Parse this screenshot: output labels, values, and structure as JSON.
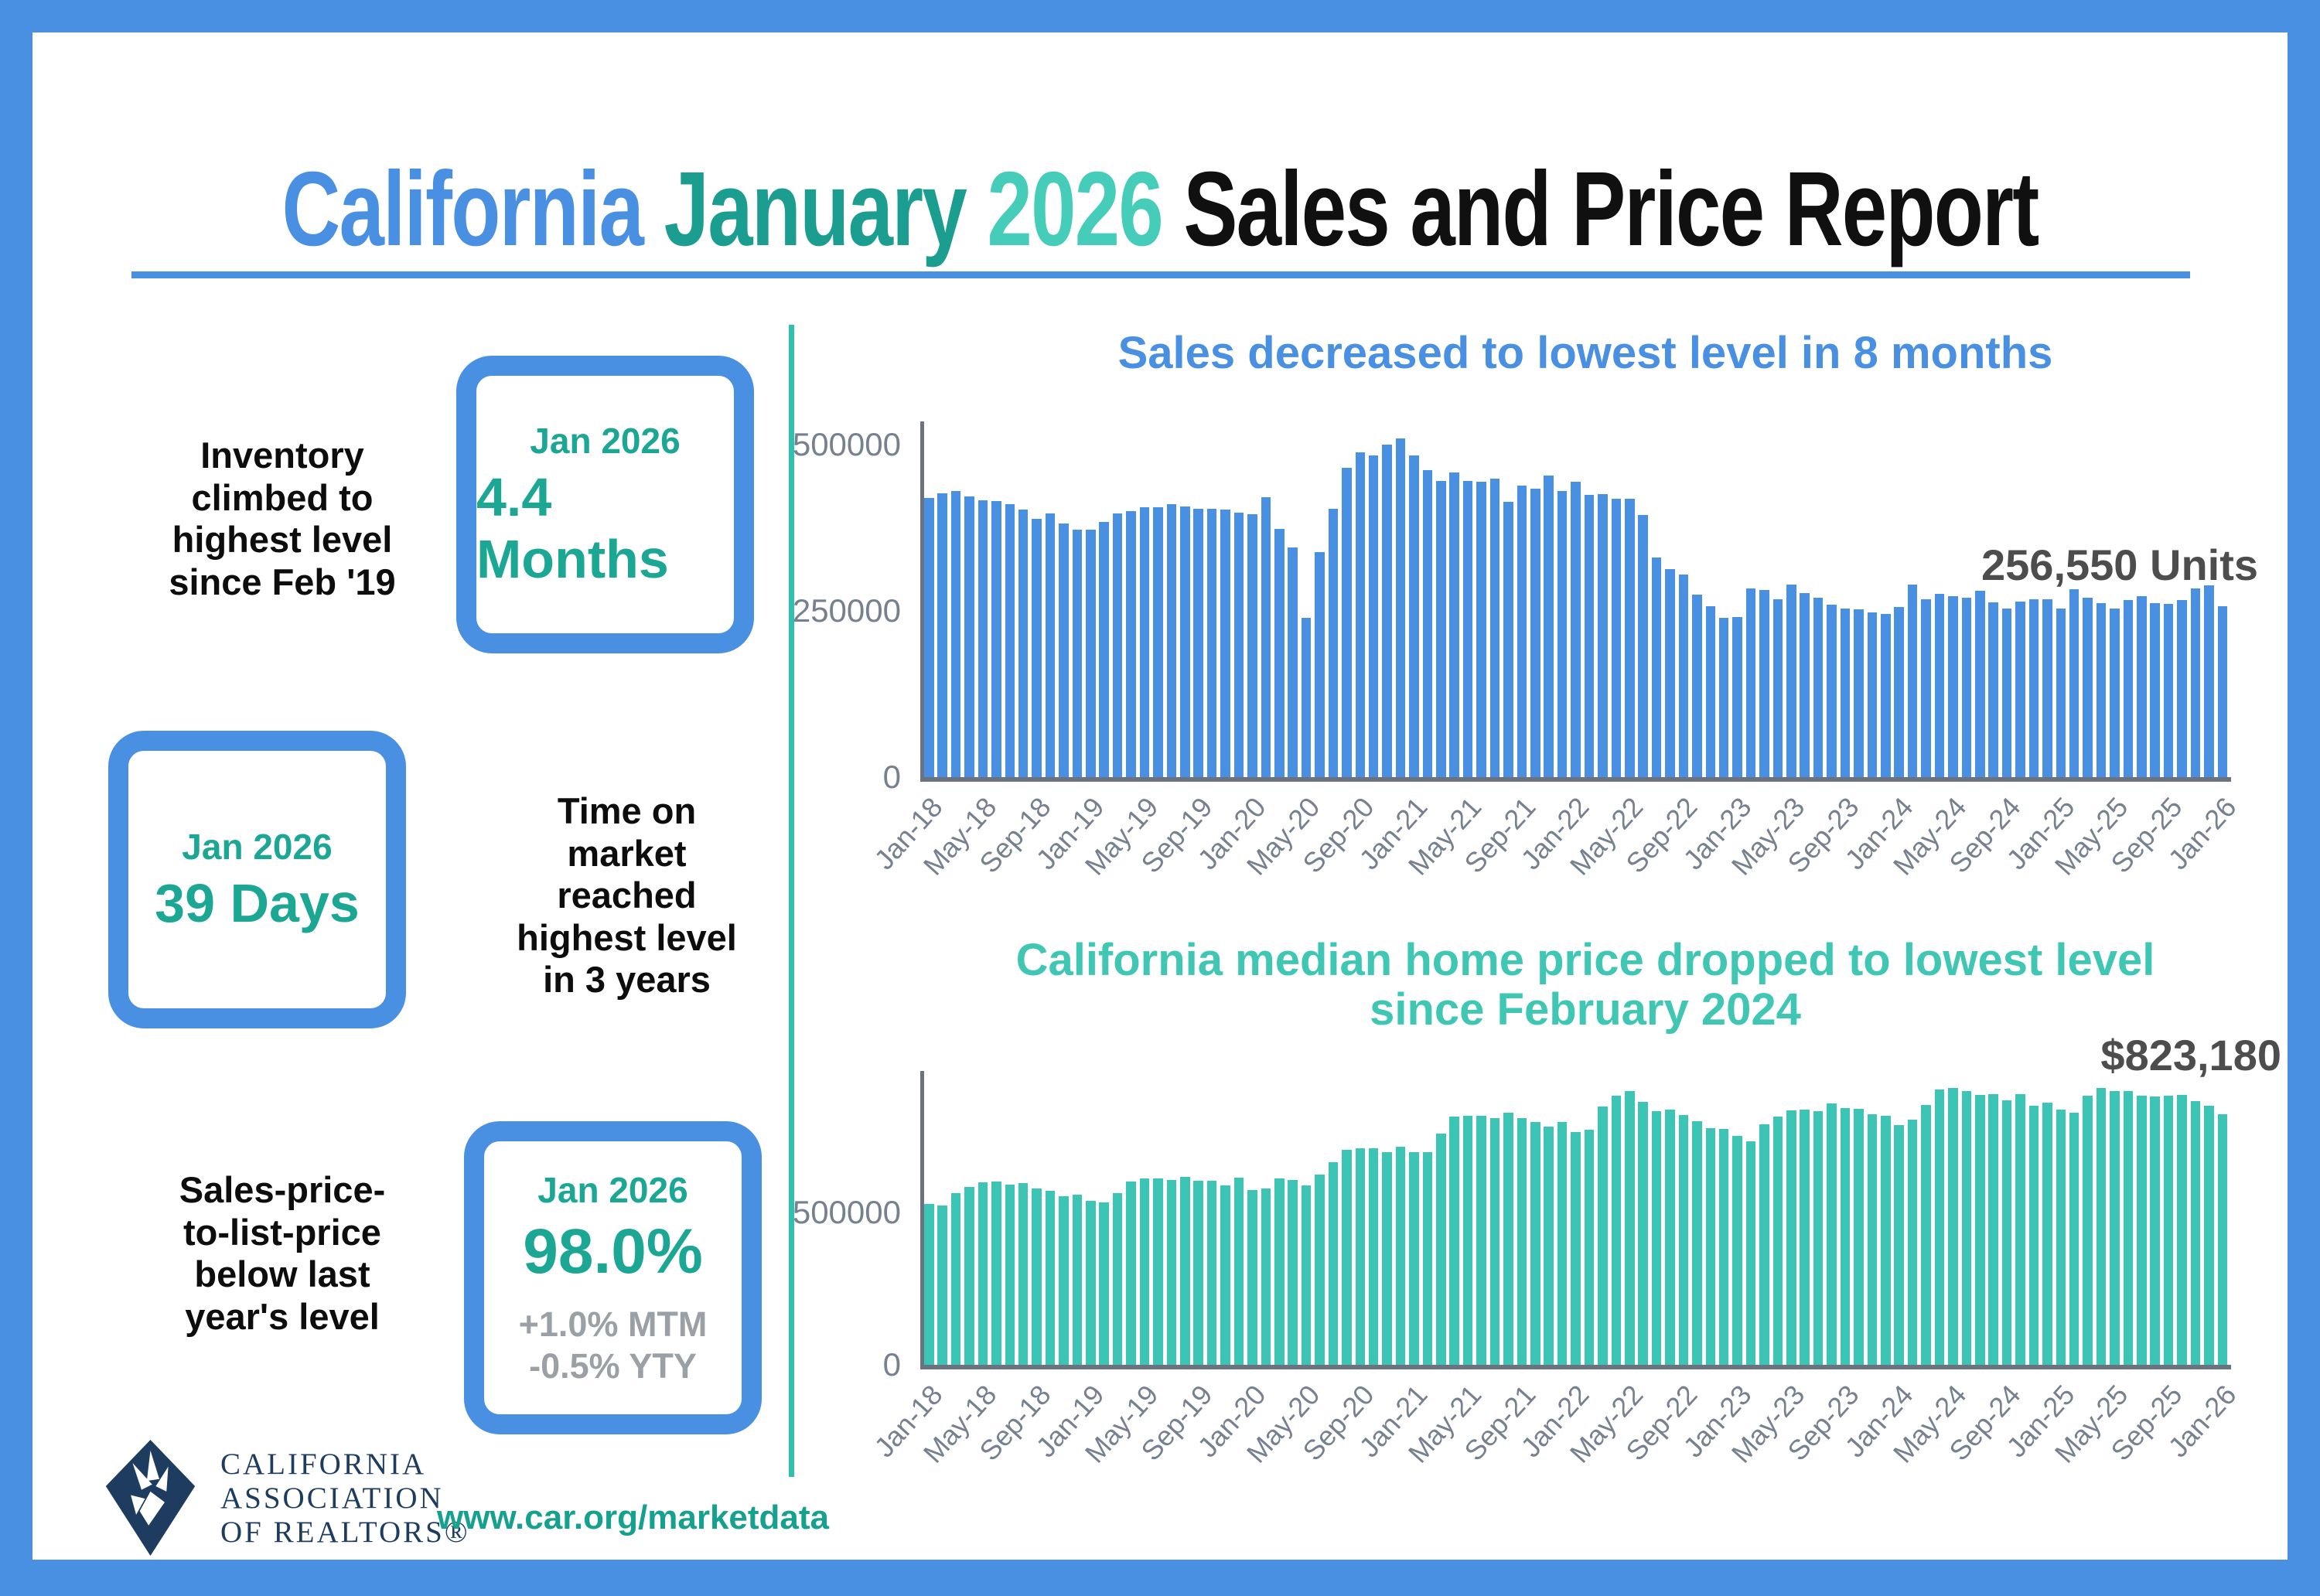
{
  "title": {
    "part1": "California",
    "part2": "January",
    "part3": "2026",
    "part4": "Sales and Price Report"
  },
  "stats": [
    {
      "label": "Inventory\nclimbed to\nhighest level\nsince Feb '19",
      "period": "Jan 2026",
      "value": "4.4 Months"
    },
    {
      "label": "Time on\nmarket\nreached\nhighest level\nin 3 years",
      "period": "Jan 2026",
      "value": "39 Days"
    },
    {
      "label": "Sales-price-\nto-list-price\nbelow last\nyear's level",
      "period": "Jan 2026",
      "value": "98.0%",
      "sub": "+1.0% MTM\n-0.5% YTY"
    }
  ],
  "footer": {
    "logo_text": "CALIFORNIA\nASSOCIATION\nOF REALTORS®",
    "url": "www.car.org/marketdata"
  },
  "colors": {
    "accent_blue": "#4a90e2",
    "accent_teal_dark": "#1b9e90",
    "accent_teal_light": "#45cdb9",
    "stat_teal": "#1ca795",
    "axis_gray": "#6b7280",
    "tick_gray": "#77808f",
    "annotation_gray": "#4d4d4d",
    "logo_navy": "#1d3c5f"
  },
  "chart_data": [
    {
      "type": "bar",
      "title": "Sales decreased to lowest level in 8 months",
      "annotation": "256,550 Units",
      "bar_color": "#4a90e2",
      "ylabel": "",
      "xlabel": "",
      "yticks": [
        0,
        250000,
        500000
      ],
      "ylim": [
        0,
        535000
      ],
      "x_start": "Jan-18",
      "x_end": "Jan-26",
      "x_tick_every": 4,
      "x_tick_labels": [
        "Jan-18",
        "May-18",
        "Sep-18",
        "Jan-19",
        "May-19",
        "Sep-19",
        "Jan-20",
        "May-20",
        "Sep-20",
        "Jan-21",
        "May-21",
        "Sep-21",
        "Jan-22",
        "May-22",
        "Sep-22",
        "Jan-23",
        "May-23",
        "Sep-23",
        "Jan-24",
        "May-24",
        "Sep-24",
        "Jan-25",
        "May-25",
        "Sep-25",
        "Jan-26"
      ],
      "values": [
        420000,
        427000,
        430000,
        422000,
        416000,
        415000,
        410000,
        403000,
        388000,
        397000,
        382000,
        372000,
        372000,
        384000,
        397000,
        400000,
        406000,
        406000,
        411000,
        407000,
        404000,
        404000,
        402000,
        398000,
        395000,
        421000,
        373000,
        345000,
        240000,
        339000,
        404000,
        465000,
        489000,
        484000,
        500000,
        509000,
        484000,
        462000,
        446000,
        458000,
        445000,
        444000,
        449000,
        414000,
        438000,
        434000,
        454000,
        430000,
        444000,
        424000,
        426000,
        419000,
        419000,
        394000,
        330000,
        313000,
        305000,
        274000,
        257000,
        240000,
        241000,
        284000,
        281000,
        267000,
        290000,
        277000,
        270000,
        259000,
        254000,
        252000,
        248000,
        245000,
        256000,
        290000,
        267000,
        276000,
        272000,
        270000,
        280000,
        263000,
        253000,
        264000,
        268000,
        268000,
        254000,
        283000,
        270000,
        262000,
        254000,
        266000,
        272000,
        262000,
        260000,
        266000,
        284000,
        288000,
        256550
      ]
    },
    {
      "type": "bar",
      "title": "California median home price dropped to lowest level\nsince February 2024",
      "annotation": "$823,180",
      "bar_color": "#3cc4b4",
      "ylabel": "",
      "xlabel": "",
      "yticks": [
        0,
        500000
      ],
      "ylim": [
        0,
        965000
      ],
      "x_start": "Jan-18",
      "x_end": "Jan-26",
      "x_tick_every": 4,
      "x_tick_labels": [
        "Jan-18",
        "May-18",
        "Sep-18",
        "Jan-19",
        "May-19",
        "Sep-19",
        "Jan-20",
        "May-20",
        "Sep-20",
        "Jan-21",
        "May-21",
        "Sep-21",
        "Jan-22",
        "May-22",
        "Sep-22",
        "Jan-23",
        "May-23",
        "Sep-23",
        "Jan-24",
        "May-24",
        "Sep-24",
        "Jan-25",
        "May-25",
        "Sep-25",
        "Jan-26"
      ],
      "values": [
        527000,
        522000,
        564000,
        584000,
        600000,
        602000,
        591000,
        596000,
        578000,
        572000,
        554000,
        558000,
        538000,
        534000,
        565000,
        602000,
        611000,
        611000,
        607000,
        617000,
        605000,
        605000,
        589000,
        615000,
        575000,
        578000,
        612000,
        606000,
        588000,
        626000,
        666000,
        706000,
        712000,
        711000,
        699000,
        717000,
        699000,
        699000,
        759000,
        814000,
        819000,
        819000,
        811000,
        827000,
        809000,
        798000,
        782000,
        797000,
        765000,
        771000,
        849000,
        884000,
        898000,
        864000,
        833000,
        839000,
        821000,
        801000,
        777000,
        774000,
        751000,
        735000,
        791000,
        815000,
        836000,
        838000,
        832000,
        859000,
        843000,
        840000,
        822000,
        819000,
        788000,
        806000,
        854000,
        904000,
        908000,
        900000,
        886000,
        888000,
        868000,
        888000,
        852000,
        861000,
        838000,
        829000,
        884000,
        910000,
        900000,
        899000,
        884000,
        880000,
        885000,
        887000,
        866000,
        850000,
        823180
      ]
    }
  ]
}
